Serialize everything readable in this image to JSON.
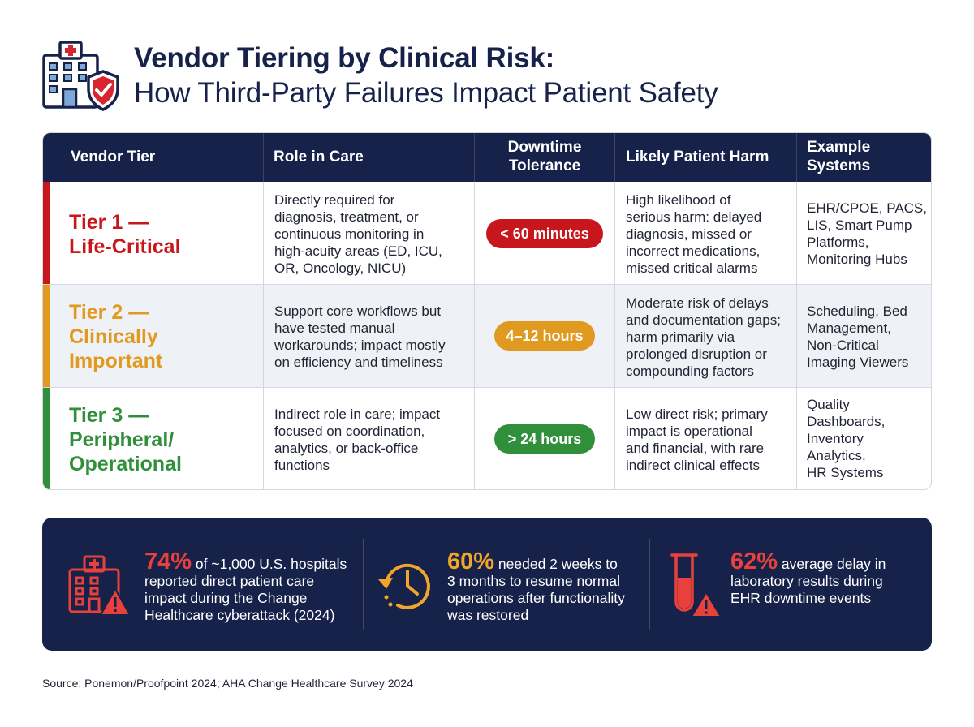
{
  "header": {
    "title_line1": "Vendor Tiering by Clinical Risk:",
    "title_line2": "How Third-Party Failures Impact Patient Safety",
    "logo_icon": "hospital-shield-icon"
  },
  "table": {
    "columns": [
      {
        "line1": "Vendor Tier",
        "line2": ""
      },
      {
        "line1": "Role in Care",
        "line2": ""
      },
      {
        "line1": "Downtime",
        "line2": "Tolerance"
      },
      {
        "line1": "Likely Patient Harm",
        "line2": ""
      },
      {
        "line1": "Example",
        "line2": "Systems"
      }
    ],
    "rows": [
      {
        "tier_line1": "Tier 1 —",
        "tier_line2": "Life-Critical",
        "tier_line3": "",
        "color": "#c8161d",
        "role": [
          "Directly required for",
          "diagnosis, treatment, or",
          "continuous monitoring in",
          "high-acuity areas (ED, ICU,",
          "OR, Oncology, NICU)"
        ],
        "downtime": "< 60 minutes",
        "harm": [
          "High likelihood of",
          "serious harm: delayed",
          "diagnosis, missed or",
          "incorrect medications,",
          "missed critical alarms"
        ],
        "systems": [
          "EHR/CPOE, PACS,",
          "LIS, Smart Pump",
          "Platforms,",
          "Monitoring Hubs"
        ]
      },
      {
        "tier_line1": "Tier 2 —",
        "tier_line2": "Clinically",
        "tier_line3": "Important",
        "color": "#e09a1f",
        "role": [
          "Support core workflows but",
          "have tested manual",
          "workarounds; impact mostly",
          "on efficiency and timeliness"
        ],
        "downtime": "4–12 hours",
        "harm": [
          "Moderate risk of delays",
          "and documentation gaps;",
          "harm primarily via",
          "prolonged disruption or",
          "compounding factors"
        ],
        "systems": [
          "Scheduling, Bed",
          "Management,",
          "Non-Critical",
          "Imaging Viewers"
        ]
      },
      {
        "tier_line1": "Tier 3 —",
        "tier_line2": "Peripheral/",
        "tier_line3": "Operational",
        "color": "#2f8f3a",
        "role": [
          "Indirect role in care; impact",
          "focused on coordination,",
          "analytics, or back-office",
          "functions"
        ],
        "downtime": "> 24 hours",
        "harm": [
          "Low direct risk; primary",
          "impact is operational",
          "and financial, with rare",
          "indirect clinical effects"
        ],
        "systems": [
          "Quality",
          "Dashboards,",
          "Inventory",
          "Analytics,",
          "HR Systems"
        ]
      }
    ]
  },
  "stats": [
    {
      "icon": "hospital-warning-icon",
      "value": "74%",
      "color": "#e8413c",
      "line1": " of ~1,000 U.S. hospitals",
      "line2": "reported direct patient care",
      "line3": "impact during the Change",
      "line4": "Healthcare cyberattack (2024)"
    },
    {
      "icon": "clock-history-icon",
      "value": "60%",
      "color": "#f0a629",
      "line1": " needed 2 weeks to",
      "line2": "3 months to resume normal",
      "line3": "operations after functionality",
      "line4": "was restored"
    },
    {
      "icon": "test-tube-warning-icon",
      "value": "62%",
      "color": "#e8413c",
      "line1": " average delay in",
      "line2": "laboratory results during",
      "line3": "EHR downtime events",
      "line4": ""
    }
  ],
  "source": "Source: Ponemon/Proofpoint 2024; AHA Change Healthcare Survey 2024"
}
